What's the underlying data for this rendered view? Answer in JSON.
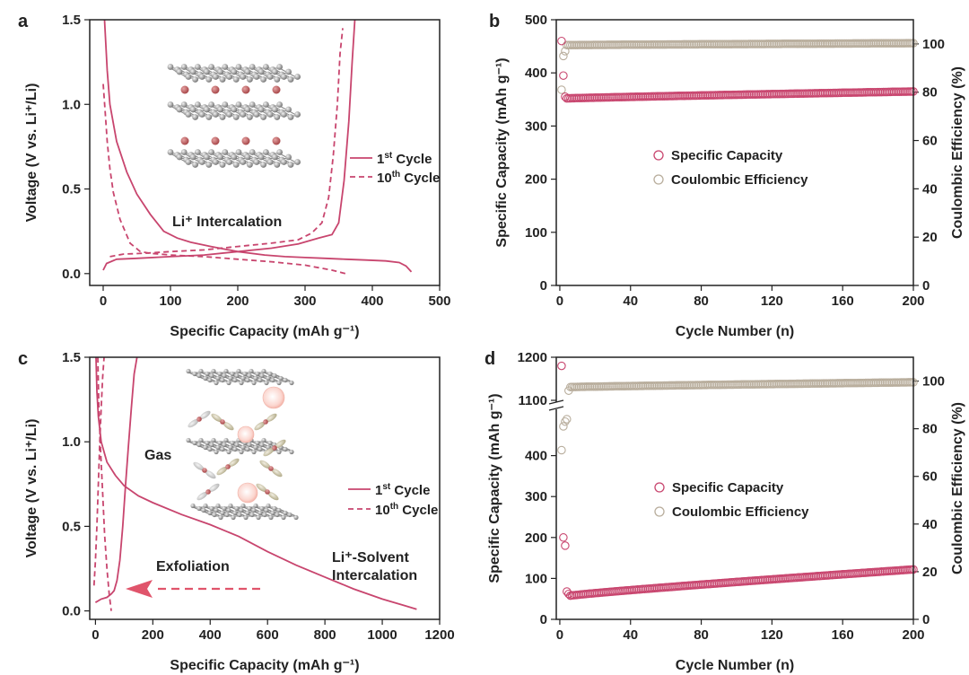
{
  "chart_data": [
    {
      "panel": "a",
      "type": "line",
      "xlabel": "Specific Capacity (mAh g⁻¹)",
      "ylabel": "Voltage (V vs. Li⁺/Li)",
      "xlim": [
        -20,
        500
      ],
      "ylim": [
        -0.07,
        1.5
      ],
      "xticks": [
        "0",
        "100",
        "200",
        "300",
        "400",
        "500"
      ],
      "yticks": [
        "0.0",
        "0.5",
        "1.0",
        "1.5"
      ],
      "legend": [
        "1st Cycle",
        "10th Cycle"
      ],
      "legend_sup": [
        "st",
        "th"
      ],
      "annotation": "Li⁺ Intercalation",
      "series": [
        {
          "name": "1st Cycle",
          "style": "solid",
          "x": [
            2,
            6,
            10,
            20,
            35,
            50,
            70,
            90,
            110,
            130,
            160,
            200,
            240,
            270,
            300,
            330,
            360,
            390,
            420,
            440,
            450,
            458
          ],
          "y": [
            1.5,
            1.2,
            1.0,
            0.78,
            0.6,
            0.47,
            0.35,
            0.25,
            0.21,
            0.185,
            0.16,
            0.13,
            0.11,
            0.1,
            0.095,
            0.09,
            0.085,
            0.08,
            0.075,
            0.065,
            0.045,
            0.01
          ]
        },
        {
          "name": "1st Cycle charge",
          "style": "solid",
          "x": [
            0,
            5,
            20,
            50,
            100,
            150,
            200,
            250,
            290,
            320,
            340,
            350,
            358,
            365,
            370,
            374
          ],
          "y": [
            0.02,
            0.06,
            0.085,
            0.09,
            0.1,
            0.11,
            0.13,
            0.15,
            0.175,
            0.21,
            0.23,
            0.3,
            0.55,
            0.9,
            1.25,
            1.5
          ]
        },
        {
          "name": "10th Cycle",
          "style": "dashed",
          "x": [
            0,
            3,
            6,
            10,
            15,
            25,
            40,
            55,
            70,
            100,
            150,
            200,
            250,
            300,
            340,
            360
          ],
          "y": [
            1.12,
            0.95,
            0.78,
            0.62,
            0.48,
            0.32,
            0.18,
            0.13,
            0.12,
            0.11,
            0.1,
            0.085,
            0.07,
            0.05,
            0.02,
            0.0
          ]
        },
        {
          "name": "10th Cycle charge",
          "style": "dashed",
          "x": [
            10,
            30,
            60,
            100,
            150,
            200,
            250,
            290,
            310,
            325,
            335,
            342,
            348,
            352,
            356
          ],
          "y": [
            0.1,
            0.115,
            0.12,
            0.13,
            0.14,
            0.16,
            0.18,
            0.2,
            0.24,
            0.3,
            0.45,
            0.7,
            1.0,
            1.3,
            1.45
          ]
        }
      ]
    },
    {
      "panel": "b",
      "type": "scatter",
      "xlabel": "Cycle Number (n)",
      "ylabel": "Specific Capacity (mAh g⁻¹)",
      "y2label": "Coulombic Efficiency (%)",
      "xlim": [
        -2,
        200
      ],
      "ylim": [
        0,
        500
      ],
      "y2lim": [
        0,
        110
      ],
      "xticks": [
        "0",
        "40",
        "80",
        "120",
        "160",
        "200"
      ],
      "yticks": [
        "0",
        "100",
        "200",
        "300",
        "400",
        "500"
      ],
      "y2ticks": [
        "0",
        "20",
        "40",
        "60",
        "80",
        "100"
      ],
      "legend": [
        "Specific Capacity",
        "Coulombic Efficiency"
      ],
      "series": [
        {
          "name": "Specific Capacity",
          "axis": "left",
          "color": "#c8456e",
          "first": [
            [
              1,
              460
            ],
            [
              2,
              395
            ],
            [
              3,
              355
            ]
          ],
          "steady_from": 4,
          "steady_to": 200,
          "steady_start": 352,
          "steady_end": 365
        },
        {
          "name": "Coulombic Efficiency",
          "axis": "right",
          "color": "#b8ad9c",
          "first": [
            [
              1,
              81
            ],
            [
              2,
              95
            ],
            [
              3,
              97
            ]
          ],
          "steady_from": 4,
          "steady_to": 200,
          "steady_start": 99.5,
          "steady_end": 100.3
        }
      ]
    },
    {
      "panel": "c",
      "type": "line",
      "xlabel": "Specific Capacity (mAh g⁻¹)",
      "ylabel": "Voltage (V vs. Li⁺/Li)",
      "xlim": [
        -20,
        1200
      ],
      "ylim": [
        -0.05,
        1.5
      ],
      "xticks": [
        "0",
        "200",
        "400",
        "600",
        "800",
        "1000",
        "1200"
      ],
      "yticks": [
        "0.0",
        "0.5",
        "1.0",
        "1.5"
      ],
      "legend": [
        "1st Cycle",
        "10th Cycle"
      ],
      "legend_sup": [
        "st",
        "th"
      ],
      "annotations": [
        "Gas",
        "Exfoliation",
        "Li⁺-Solvent",
        "Intercalation"
      ],
      "series": [
        {
          "name": "1st Cycle",
          "style": "solid",
          "x": [
            2,
            5,
            10,
            20,
            40,
            70,
            100,
            150,
            200,
            300,
            400,
            500,
            600,
            700,
            800,
            900,
            1000,
            1080,
            1120
          ],
          "y": [
            1.5,
            1.3,
            1.15,
            1.0,
            0.88,
            0.8,
            0.74,
            0.68,
            0.64,
            0.57,
            0.51,
            0.44,
            0.35,
            0.27,
            0.2,
            0.13,
            0.07,
            0.03,
            0.01
          ]
        },
        {
          "name": "1st Cycle charge",
          "style": "solid",
          "x": [
            0,
            20,
            40,
            55,
            65,
            75,
            85,
            95,
            105,
            115,
            125,
            135,
            145
          ],
          "y": [
            0.05,
            0.07,
            0.08,
            0.1,
            0.12,
            0.18,
            0.3,
            0.5,
            0.75,
            0.98,
            1.2,
            1.4,
            1.5
          ]
        },
        {
          "name": "10th Cycle",
          "style": "dashed",
          "x": [
            8,
            12,
            18,
            25,
            32,
            40,
            48,
            55
          ],
          "y": [
            1.5,
            1.2,
            0.95,
            0.7,
            0.45,
            0.25,
            0.1,
            0.0
          ]
        },
        {
          "name": "10th Cycle charge",
          "style": "dashed",
          "x": [
            -5,
            0,
            5,
            10,
            15,
            20,
            25,
            30
          ],
          "y": [
            0.15,
            0.3,
            0.5,
            0.75,
            1.0,
            1.2,
            1.38,
            1.5
          ]
        }
      ]
    },
    {
      "panel": "d",
      "type": "scatter",
      "xlabel": "Cycle Number (n)",
      "ylabel": "Specific Capacity (mAh g⁻¹)",
      "y2label": "Coulombic Efficiency (%)",
      "xlim": [
        -2,
        200
      ],
      "ylim_lower": [
        0,
        500
      ],
      "ylim_upper": [
        1100,
        1200
      ],
      "y2lim": [
        0,
        110
      ],
      "xticks": [
        "0",
        "40",
        "80",
        "120",
        "160",
        "200"
      ],
      "yticks_lower": [
        "0",
        "100",
        "200",
        "300",
        "400"
      ],
      "yticks_upper": [
        "1100",
        "1200"
      ],
      "y2ticks": [
        "0",
        "20",
        "40",
        "60",
        "80",
        "100"
      ],
      "legend": [
        "Specific Capacity",
        "Coulombic Efficiency"
      ],
      "series": [
        {
          "name": "Specific Capacity",
          "axis": "left",
          "color": "#c8456e",
          "first": [
            [
              1,
              1180
            ],
            [
              2,
              200
            ],
            [
              3,
              180
            ],
            [
              4,
              68
            ],
            [
              5,
              62
            ]
          ],
          "steady_from": 6,
          "steady_to": 200,
          "steady_start": 58,
          "steady_end": 122
        },
        {
          "name": "Coulombic Efficiency",
          "axis": "right",
          "color": "#b8ad9c",
          "first": [
            [
              1,
              71
            ],
            [
              2,
              81
            ],
            [
              3,
              83
            ],
            [
              4,
              84
            ],
            [
              5,
              96
            ]
          ],
          "steady_from": 6,
          "steady_to": 200,
          "steady_start": 97.5,
          "steady_end": 99.5
        }
      ]
    }
  ]
}
